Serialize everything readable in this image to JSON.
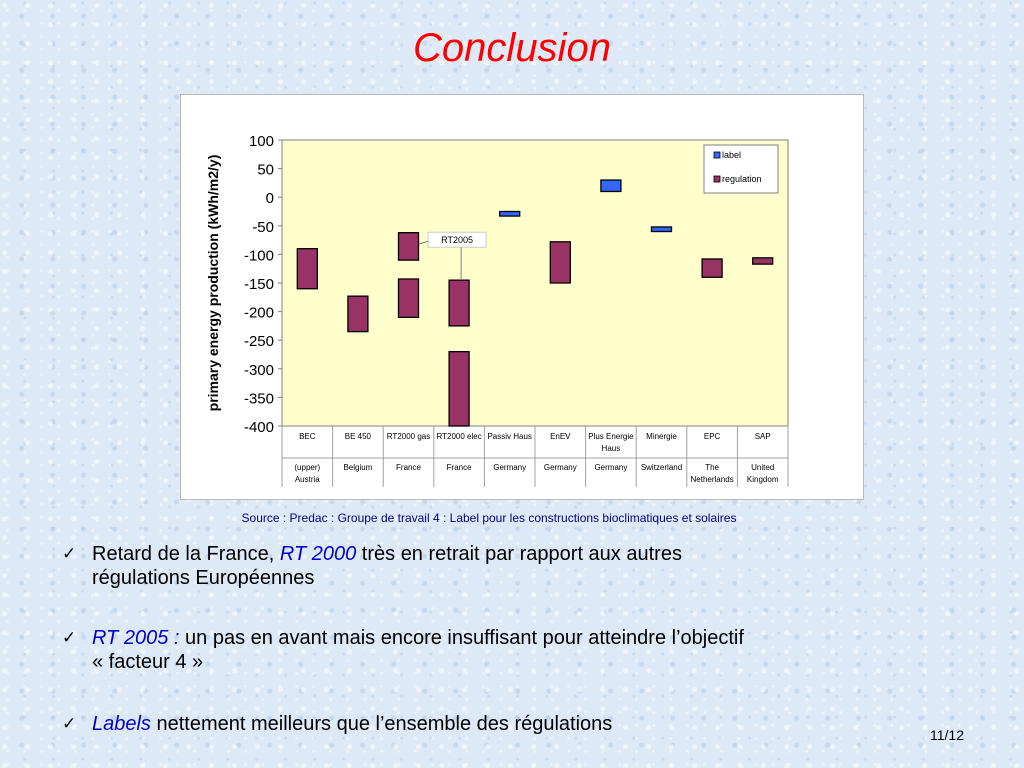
{
  "slide": {
    "title": "Conclusion",
    "source": "Source : Predac : Groupe de travail 4 : Label pour les constructions bioclimatiques et solaires",
    "page": "11/12",
    "bullets": [
      {
        "part1": "Retard de la France, ",
        "part2": "RT 2000",
        "part3": " très en retrait par rapport aux autres",
        "part4": "régulations Européennes"
      },
      {
        "part1": "RT 2005 :",
        "part2": " un pas en avant mais encore insuffisant pour atteindre l’objectif",
        "part3": "« facteur 4 »"
      },
      {
        "part1": "Labels",
        "part2": " nettement meilleurs que l’ensemble des régulations"
      }
    ],
    "check_glyph": "✓"
  },
  "colors": {
    "title": "#ff0000",
    "plot_bg": "#ffffcc",
    "regulation": "#993366",
    "label": "#3366ff",
    "bullet_italic": "#0000cc"
  },
  "chart_data": {
    "type": "bar",
    "floating": true,
    "ylabel": "primary energy production (kWh/m2/y)",
    "ylim": [
      -400,
      100
    ],
    "yticks": [
      100,
      50,
      0,
      -50,
      -100,
      -150,
      -200,
      -250,
      -300,
      -350,
      -400
    ],
    "categories": [
      {
        "name": "BEC",
        "country": [
          "(upper)",
          "Austria"
        ]
      },
      {
        "name": "BE 450",
        "country": [
          "Belgium"
        ]
      },
      {
        "name": "RT2000 gas",
        "country": [
          "France"
        ]
      },
      {
        "name": "RT2000 elec",
        "country": [
          "France"
        ]
      },
      {
        "name": "Passiv Haus",
        "country": [
          "Germany"
        ]
      },
      {
        "name": "EnEV",
        "country": [
          "Germany"
        ]
      },
      {
        "name": "Plus Energie Haus",
        "country": [
          "Germany"
        ]
      },
      {
        "name": "Minergie",
        "country": [
          "Switzerland"
        ]
      },
      {
        "name": "EPC",
        "country": [
          "The",
          "Netherlands"
        ]
      },
      {
        "name": "SAP",
        "country": [
          "United",
          "Kingdom"
        ]
      }
    ],
    "series": [
      {
        "name": "label",
        "color": "#3366ff",
        "bars": [
          {
            "category": 4,
            "low": -33,
            "high": -25
          },
          {
            "category": 6,
            "low": 10,
            "high": 30
          },
          {
            "category": 7,
            "low": -60,
            "high": -52
          }
        ]
      },
      {
        "name": "regulation",
        "color": "#993366",
        "bars": [
          {
            "category": 0,
            "low": -160,
            "high": -90
          },
          {
            "category": 1,
            "low": -235,
            "high": -173
          },
          {
            "category": 2,
            "low": -210,
            "high": -143
          },
          {
            "category": 3,
            "low": -225,
            "high": -145
          },
          {
            "category": 3,
            "low": -400,
            "high": -270
          },
          {
            "category": 5,
            "low": -150,
            "high": -78
          },
          {
            "category": 8,
            "low": -140,
            "high": -108
          },
          {
            "category": 9,
            "low": -117,
            "high": -106
          }
        ]
      },
      {
        "name": "",
        "color": "#993366",
        "bars": [
          {
            "category": 2,
            "low": -110,
            "high": -62
          }
        ]
      }
    ],
    "annotation": {
      "text": "RT2005",
      "category": 3,
      "value": -77
    },
    "legend": {
      "position": "top-right",
      "entries": [
        "label",
        "regulation"
      ]
    }
  }
}
